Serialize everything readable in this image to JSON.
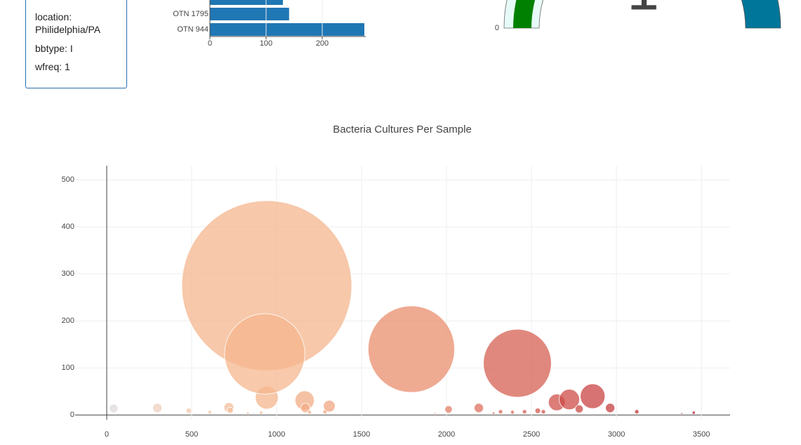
{
  "panel": {
    "lines": [
      "location: Philidelphia/PA",
      "bbtype: I",
      "wfreq: 1"
    ]
  },
  "chart_data": [
    {
      "type": "hbar",
      "categories": [
        null,
        "OTN 1795",
        "OTN 944"
      ],
      "values": [
        130,
        141,
        275
      ],
      "color": "#1f77b4",
      "xlim": [
        0,
        290
      ],
      "xticks": [
        0,
        100,
        200
      ]
    },
    {
      "type": "gauge",
      "value": 1,
      "ticks": [
        0
      ]
    },
    {
      "type": "bubble",
      "title": "Bacteria Cultures Per Sample",
      "x": [
        41,
        298,
        483,
        607,
        719,
        727,
        831,
        909,
        942,
        942,
        930,
        1165,
        1169,
        1194,
        1285,
        1310,
        1793,
        1934,
        2012,
        2190,
        2277,
        2318,
        2388,
        2417,
        2459,
        2537,
        2570,
        2649,
        2723,
        2781,
        2860,
        2963,
        3120,
        3384,
        3455
      ],
      "values": [
        14,
        15,
        9,
        6,
        16,
        10,
        4,
        5,
        275,
        37,
        130,
        31,
        15,
        6,
        7,
        19,
        140,
        3,
        12,
        15,
        4,
        7,
        6,
        110,
        7,
        9,
        7,
        27,
        33,
        13,
        40,
        15,
        7,
        3,
        5
      ],
      "colorscale": [
        [
          0,
          "#dcdcdc"
        ],
        [
          300,
          "#efcfbd"
        ],
        [
          900,
          "#f5b88f"
        ],
        [
          1800,
          "#e98e6d"
        ],
        [
          2500,
          "#d45a50"
        ],
        [
          3500,
          "#b81d2d"
        ]
      ],
      "xlim": [
        -186,
        3669
      ],
      "ylim": [
        -10,
        530
      ],
      "xticks": [
        0,
        500,
        1000,
        1500,
        2000,
        2500,
        3000,
        3500
      ],
      "yticks": [
        0,
        100,
        200,
        300,
        400,
        500
      ],
      "grid": true
    }
  ]
}
